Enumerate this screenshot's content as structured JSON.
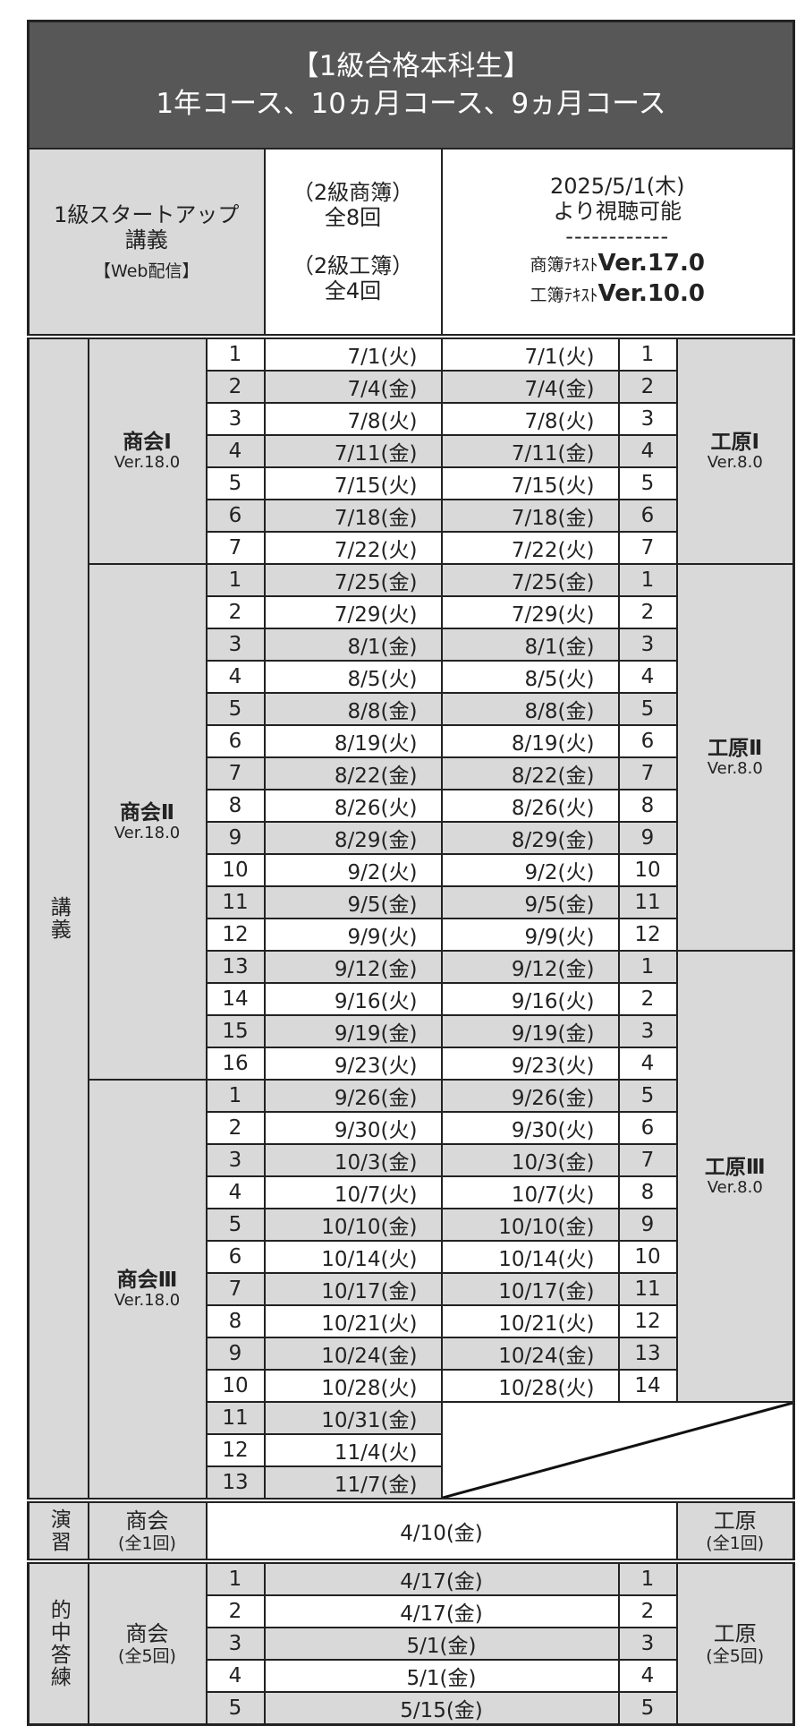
{
  "title": {
    "line1": "【1級合格本科生】",
    "line2": "1年コース、10ヵ月コース、9ヵ月コース"
  },
  "header": {
    "startup": {
      "line1": "1級スタートアップ",
      "line2": "講義",
      "line3": "【Web配信】"
    },
    "counts": {
      "shobo_label": "（2級商簿）",
      "shobo_count": "全8回",
      "kobo_label": "（2級工簿）",
      "kobo_count": "全4回"
    },
    "availability": {
      "date": "2025/5/1(木)",
      "note": "より視聴可能",
      "divider": "------------",
      "shobo_prefix": "商簿ﾃｷｽﾄ",
      "shobo_ver": "Ver.17.0",
      "kobo_prefix": "工簿ﾃｷｽﾄ",
      "kobo_ver": "Ver.10.0"
    }
  },
  "lecture": {
    "label": "講義",
    "shokai_groups": [
      {
        "name": "商会Ⅰ",
        "ver": "Ver.18.0",
        "sessions": [
          {
            "no": "1",
            "date": "7/1(火)",
            "kougen_date": "7/1(火)",
            "kougen_no": "1"
          },
          {
            "no": "2",
            "date": "7/4(金)",
            "kougen_date": "7/4(金)",
            "kougen_no": "2"
          },
          {
            "no": "3",
            "date": "7/8(火)",
            "kougen_date": "7/8(火)",
            "kougen_no": "3"
          },
          {
            "no": "4",
            "date": "7/11(金)",
            "kougen_date": "7/11(金)",
            "kougen_no": "4"
          },
          {
            "no": "5",
            "date": "7/15(火)",
            "kougen_date": "7/15(火)",
            "kougen_no": "5"
          },
          {
            "no": "6",
            "date": "7/18(金)",
            "kougen_date": "7/18(金)",
            "kougen_no": "6"
          },
          {
            "no": "7",
            "date": "7/22(火)",
            "kougen_date": "7/22(火)",
            "kougen_no": "7"
          }
        ]
      },
      {
        "name": "商会Ⅱ",
        "ver": "Ver.18.0",
        "sessions": [
          {
            "no": "1",
            "date": "7/25(金)",
            "kougen_date": "7/25(金)",
            "kougen_no": "1"
          },
          {
            "no": "2",
            "date": "7/29(火)",
            "kougen_date": "7/29(火)",
            "kougen_no": "2"
          },
          {
            "no": "3",
            "date": "8/1(金)",
            "kougen_date": "8/1(金)",
            "kougen_no": "3"
          },
          {
            "no": "4",
            "date": "8/5(火)",
            "kougen_date": "8/5(火)",
            "kougen_no": "4"
          },
          {
            "no": "5",
            "date": "8/8(金)",
            "kougen_date": "8/8(金)",
            "kougen_no": "5"
          },
          {
            "no": "6",
            "date": "8/19(火)",
            "kougen_date": "8/19(火)",
            "kougen_no": "6"
          },
          {
            "no": "7",
            "date": "8/22(金)",
            "kougen_date": "8/22(金)",
            "kougen_no": "7"
          },
          {
            "no": "8",
            "date": "8/26(火)",
            "kougen_date": "8/26(火)",
            "kougen_no": "8"
          },
          {
            "no": "9",
            "date": "8/29(金)",
            "kougen_date": "8/29(金)",
            "kougen_no": "9"
          },
          {
            "no": "10",
            "date": "9/2(火)",
            "kougen_date": "9/2(火)",
            "kougen_no": "10"
          },
          {
            "no": "11",
            "date": "9/5(金)",
            "kougen_date": "9/5(金)",
            "kougen_no": "11"
          },
          {
            "no": "12",
            "date": "9/9(火)",
            "kougen_date": "9/9(火)",
            "kougen_no": "12"
          },
          {
            "no": "13",
            "date": "9/12(金)",
            "kougen_date": "9/12(金)",
            "kougen_no": "1"
          },
          {
            "no": "14",
            "date": "9/16(火)",
            "kougen_date": "9/16(火)",
            "kougen_no": "2"
          },
          {
            "no": "15",
            "date": "9/19(金)",
            "kougen_date": "9/19(金)",
            "kougen_no": "3"
          },
          {
            "no": "16",
            "date": "9/23(火)",
            "kougen_date": "9/23(火)",
            "kougen_no": "4"
          }
        ]
      },
      {
        "name": "商会Ⅲ",
        "ver": "Ver.18.0",
        "sessions": [
          {
            "no": "1",
            "date": "9/26(金)",
            "kougen_date": "9/26(金)",
            "kougen_no": "5"
          },
          {
            "no": "2",
            "date": "9/30(火)",
            "kougen_date": "9/30(火)",
            "kougen_no": "6"
          },
          {
            "no": "3",
            "date": "10/3(金)",
            "kougen_date": "10/3(金)",
            "kougen_no": "7"
          },
          {
            "no": "4",
            "date": "10/7(火)",
            "kougen_date": "10/7(火)",
            "kougen_no": "8"
          },
          {
            "no": "5",
            "date": "10/10(金)",
            "kougen_date": "10/10(金)",
            "kougen_no": "9"
          },
          {
            "no": "6",
            "date": "10/14(火)",
            "kougen_date": "10/14(火)",
            "kougen_no": "10"
          },
          {
            "no": "7",
            "date": "10/17(金)",
            "kougen_date": "10/17(金)",
            "kougen_no": "11"
          },
          {
            "no": "8",
            "date": "10/21(火)",
            "kougen_date": "10/21(火)",
            "kougen_no": "12"
          },
          {
            "no": "9",
            "date": "10/24(金)",
            "kougen_date": "10/24(金)",
            "kougen_no": "13"
          },
          {
            "no": "10",
            "date": "10/28(火)",
            "kougen_date": "10/28(火)",
            "kougen_no": "14"
          },
          {
            "no": "11",
            "date": "10/31(金)"
          },
          {
            "no": "12",
            "date": "11/4(火)"
          },
          {
            "no": "13",
            "date": "11/7(金)"
          }
        ]
      }
    ],
    "kougen_groups": [
      {
        "name": "工原Ⅰ",
        "ver": "Ver.8.0"
      },
      {
        "name": "工原Ⅱ",
        "ver": "Ver.8.0"
      },
      {
        "name": "工原Ⅲ",
        "ver": "Ver.8.0"
      }
    ]
  },
  "exercise": {
    "label": "演習",
    "shokai": {
      "name": "商会",
      "count": "(全1回)"
    },
    "date": "4/10(金)",
    "kougen": {
      "name": "工原",
      "count": "(全1回)"
    }
  },
  "mock": {
    "label": "的中答練",
    "shokai": {
      "name": "商会",
      "count": "(全5回)"
    },
    "kougen": {
      "name": "工原",
      "count": "(全5回)"
    },
    "sessions": [
      {
        "no": "1",
        "date": "4/17(金)",
        "kougen_no": "1"
      },
      {
        "no": "2",
        "date": "4/17(金)",
        "kougen_no": "2"
      },
      {
        "no": "3",
        "date": "5/1(金)",
        "kougen_no": "3"
      },
      {
        "no": "4",
        "date": "5/1(金)",
        "kougen_no": "4"
      },
      {
        "no": "5",
        "date": "5/15(金)",
        "kougen_no": "5"
      }
    ]
  },
  "colors": {
    "title_bg": "#575757",
    "shade": "#d9d9d9",
    "border": "#222222"
  }
}
